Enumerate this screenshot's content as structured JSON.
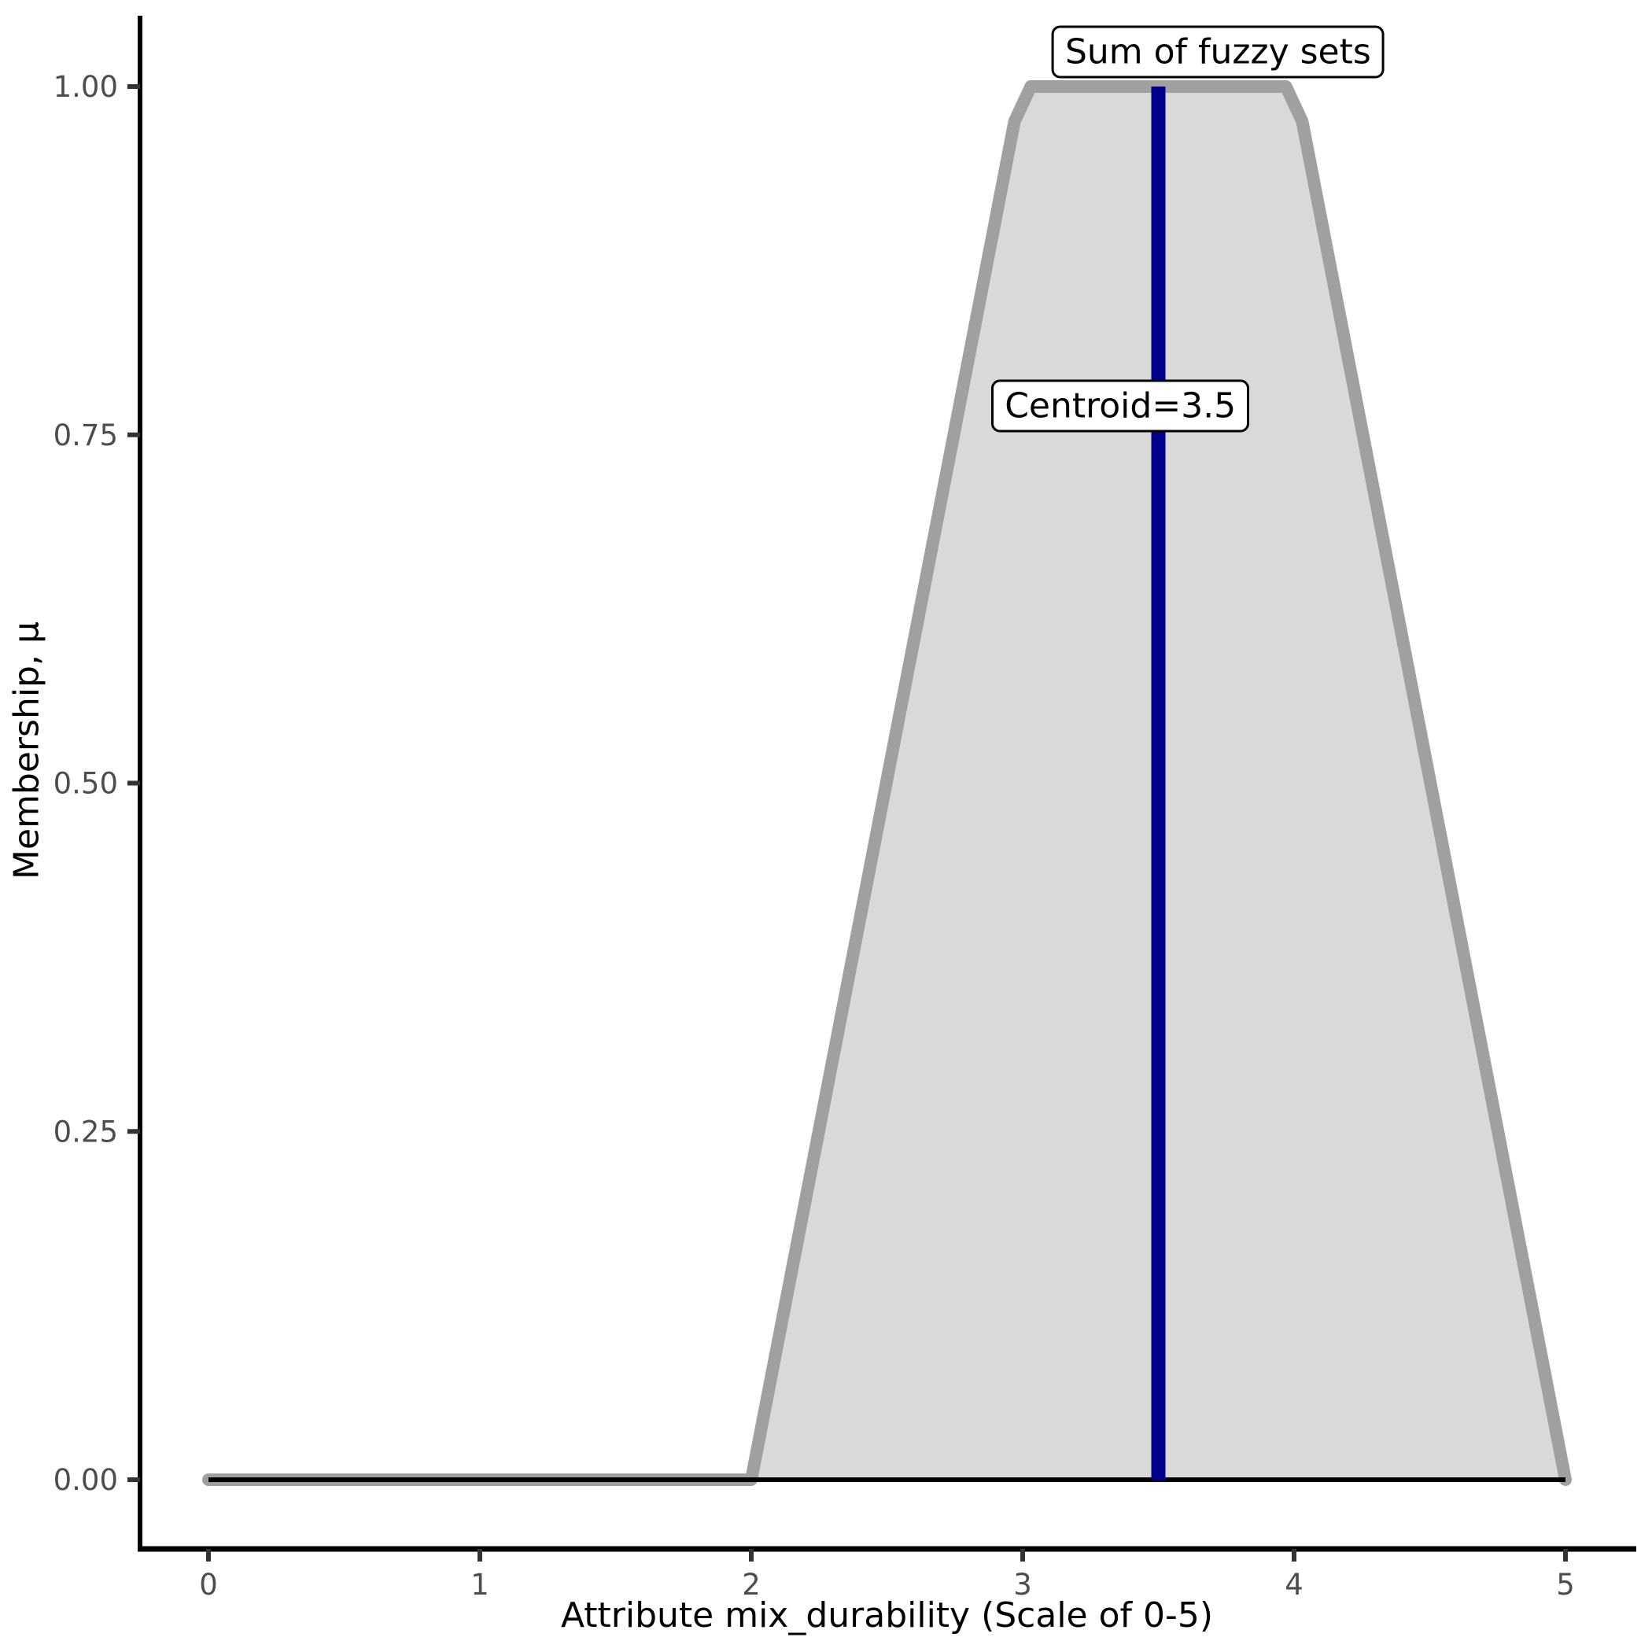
{
  "chart_data": {
    "type": "area",
    "title": "",
    "xlabel": "Attribute mix_durability (Scale of 0-5)",
    "ylabel": "Membership, μ",
    "xlim": [
      0,
      5
    ],
    "ylim": [
      0,
      1
    ],
    "grid": "off",
    "legend": "none",
    "x_ticks": [
      {
        "value": 0,
        "label": "0"
      },
      {
        "value": 1,
        "label": "1"
      },
      {
        "value": 2,
        "label": "2"
      },
      {
        "value": 3,
        "label": "3"
      },
      {
        "value": 4,
        "label": "4"
      },
      {
        "value": 5,
        "label": "5"
      }
    ],
    "y_ticks": [
      {
        "value": 0.0,
        "label": "0.00"
      },
      {
        "value": 0.25,
        "label": "0.25"
      },
      {
        "value": 0.5,
        "label": "0.50"
      },
      {
        "value": 0.75,
        "label": "0.75"
      },
      {
        "value": 1.0,
        "label": "1.00"
      }
    ],
    "series": [
      {
        "name": "Sum of fuzzy sets",
        "points": [
          [
            0,
            0
          ],
          [
            2,
            0
          ],
          [
            2.97,
            0.975
          ],
          [
            3.03,
            1
          ],
          [
            3.97,
            1
          ],
          [
            4.03,
            0.975
          ],
          [
            5,
            0
          ]
        ],
        "fill_color": "#D9D9D9",
        "stroke_color": "#A0A0A0",
        "stroke_width": 16
      }
    ],
    "baseline": {
      "y": 0,
      "x_from": 0,
      "x_to": 5,
      "color": "#000000",
      "width": 6
    },
    "centroid": {
      "x": 3.5,
      "y_from": 0,
      "y_to": 1,
      "color": "#00008B",
      "width": 18
    },
    "annotations": [
      {
        "text": "Sum of fuzzy sets",
        "x": 3.72,
        "y": 1.025
      },
      {
        "text": "Centroid=3.5",
        "x": 3.36,
        "y": 0.771
      }
    ],
    "axis_color": "#000000",
    "tick_color": "#333333",
    "tick_label_color": "#4D4D4D"
  }
}
